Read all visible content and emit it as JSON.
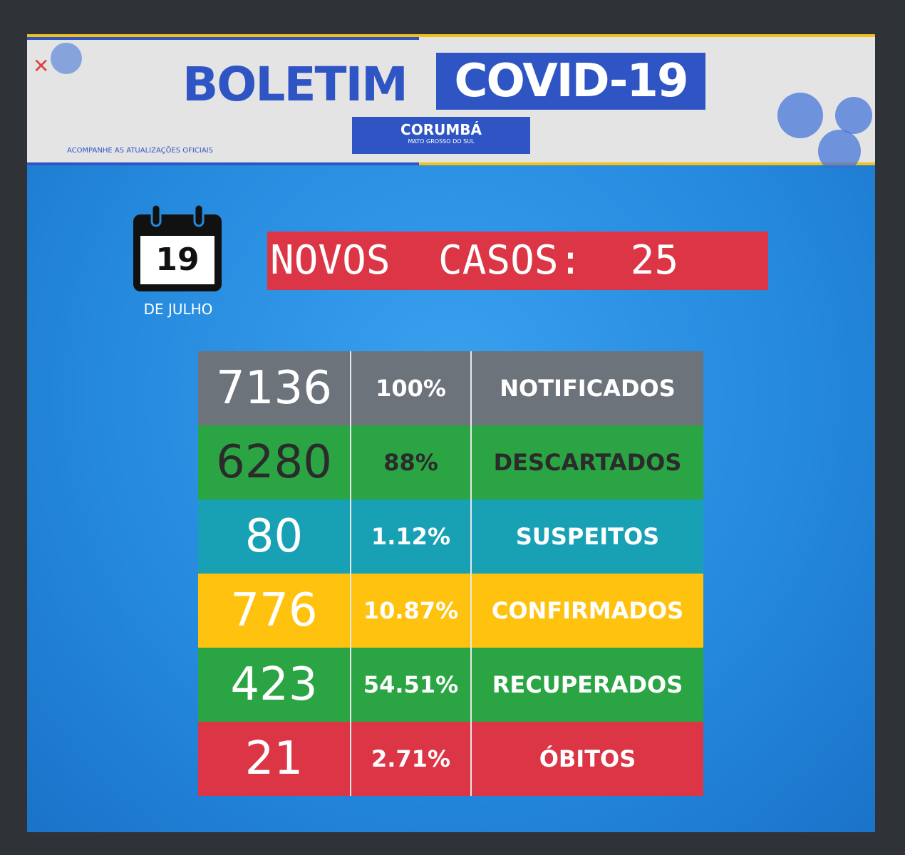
{
  "header": {
    "title_left": "BOLETIM",
    "title_right": "COVID-19",
    "city": "CORUMBÁ",
    "state": "MATO GROSSO DO SUL",
    "tagline": "ACOMPANHE AS ATUALIZAÇÕES OFICIAIS"
  },
  "date": {
    "day": "19",
    "month": "DE JULHO"
  },
  "new_cases": {
    "label": "NOVOS  CASOS:",
    "value": "25"
  },
  "table": {
    "rows": [
      [
        "7136",
        "100%",
        "NOTIFICADOS"
      ],
      [
        "6280",
        "88%",
        "DESCARTADOS"
      ],
      [
        "80",
        "1.12%",
        "SUSPEITOS"
      ],
      [
        "776",
        "10.87%",
        "CONFIRMADOS"
      ],
      [
        "423",
        "54.51%",
        "RECUPERADOS"
      ],
      [
        "21",
        "2.71%",
        "ÓBITOS"
      ]
    ]
  }
}
